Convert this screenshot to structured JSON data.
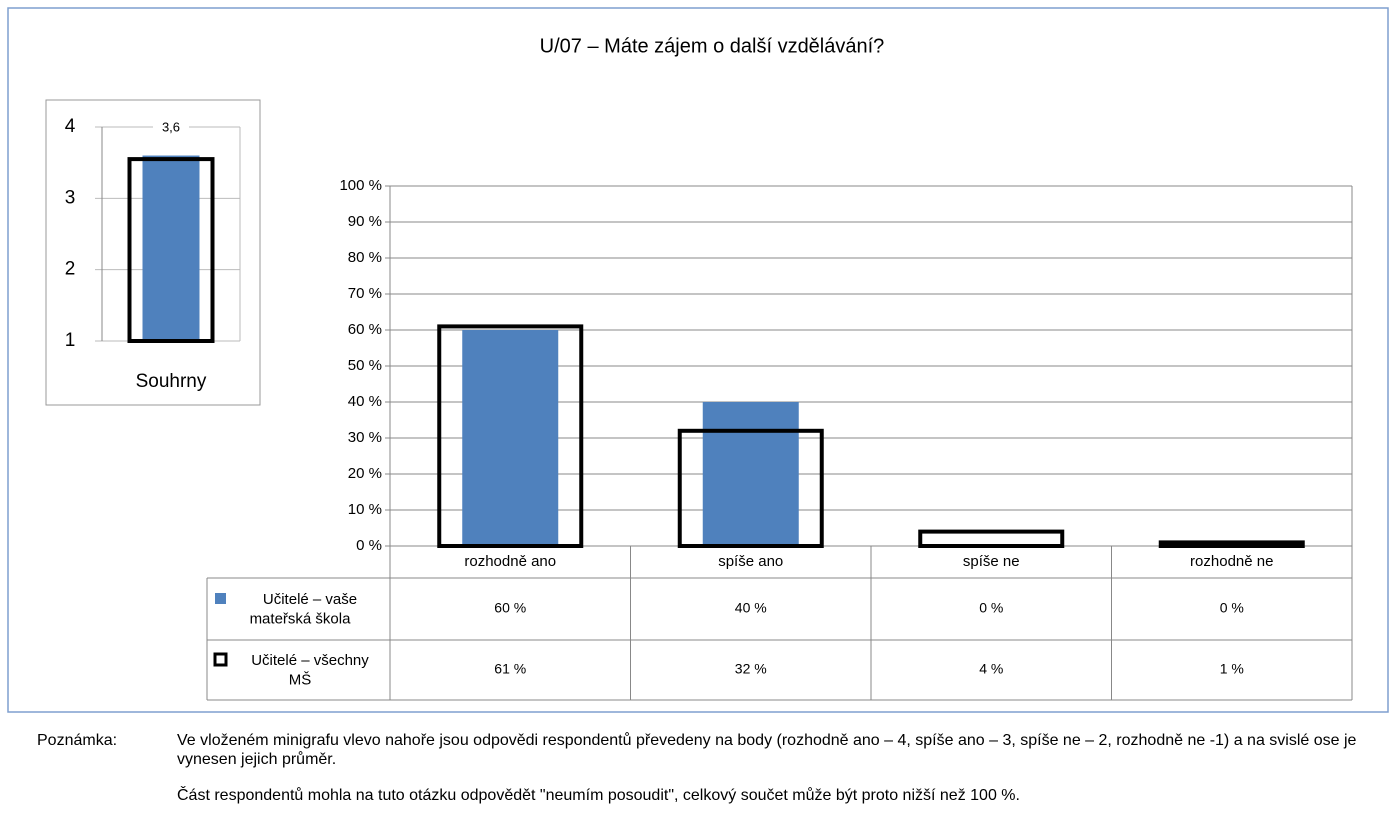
{
  "chart_data": [
    {
      "type": "bar",
      "title": "U/07 – Máte zájem o další vzdělávání?",
      "categories": [
        "rozhodně ano",
        "spíše ano",
        "spíše ne",
        "rozhodně ne"
      ],
      "series": [
        {
          "name": "Učitelé – vaše mateřská škola",
          "color": "#4f81bd",
          "style": "fill",
          "values": [
            60,
            40,
            0,
            0
          ],
          "value_labels": [
            "60 %",
            "40 %",
            "0 %",
            "0 %"
          ]
        },
        {
          "name": "Učitelé – všechny MŠ",
          "color": "#000000",
          "style": "outline",
          "values": [
            61,
            32,
            4,
            1
          ],
          "value_labels": [
            "61 %",
            "32 %",
            "4 %",
            "1 %"
          ]
        }
      ],
      "ylim": [
        0,
        100
      ],
      "yticks": [
        {
          "value": 0,
          "label": "0 %"
        },
        {
          "value": 10,
          "label": "10 %"
        },
        {
          "value": 20,
          "label": "20 %"
        },
        {
          "value": 30,
          "label": "30 %"
        },
        {
          "value": 40,
          "label": "40 %"
        },
        {
          "value": 50,
          "label": "50 %"
        },
        {
          "value": 60,
          "label": "60 %"
        },
        {
          "value": 70,
          "label": "70 %"
        },
        {
          "value": 80,
          "label": "80 %"
        },
        {
          "value": 90,
          "label": "90 %"
        },
        {
          "value": 100,
          "label": "100 %"
        }
      ],
      "grid": true
    },
    {
      "type": "bar",
      "categories": [
        "Souhrny"
      ],
      "series": [
        {
          "color": "#4f81bd",
          "style": "fill",
          "values": [
            3.6
          ],
          "value_labels": [
            "3,6"
          ]
        },
        {
          "color": "#000000",
          "style": "outline",
          "values": [
            3.55
          ]
        }
      ],
      "ylim": [
        1,
        4
      ],
      "yticks": [
        1,
        2,
        3,
        4
      ],
      "grid": true
    }
  ],
  "note": {
    "label": "Poznámka:",
    "paragraphs": [
      "Ve vloženém minigrafu vlevo nahoře jsou odpovědi respondentů převedeny na body (rozhodně ano – 4, spíše ano – 3, spíše ne – 2, rozhodně ne -1) a na svislé ose je vynesen jejich průměr.",
      "Část respondentů mohla na tuto otázku odpovědět \"neumím posoudit\", celkový součet může být proto nižší než 100 %."
    ]
  }
}
